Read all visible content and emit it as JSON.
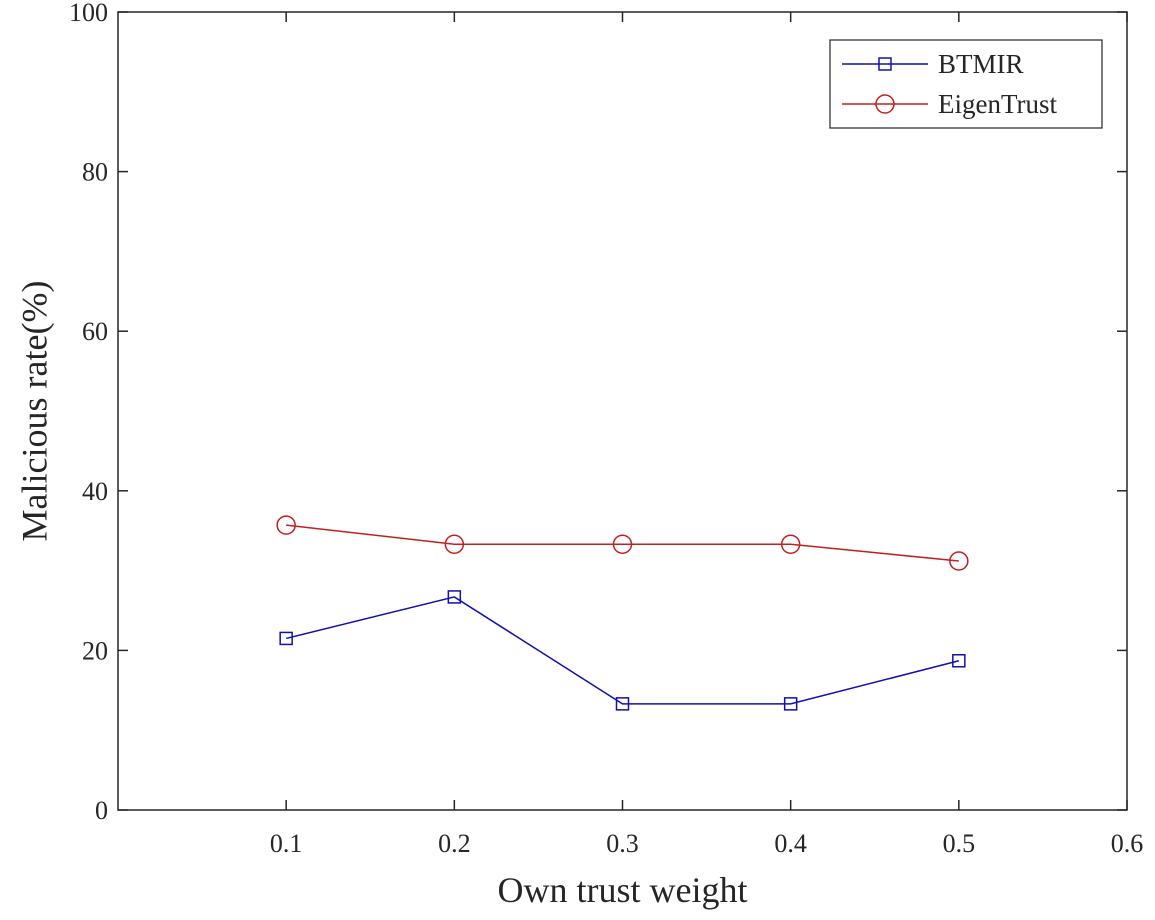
{
  "chart_data": {
    "type": "line",
    "title": "",
    "xlabel": "Own trust weight",
    "ylabel": "Malicious rate(%)",
    "xlim": [
      0,
      0.6
    ],
    "ylim": [
      0,
      100
    ],
    "x_ticks": [
      0.1,
      0.2,
      0.3,
      0.4,
      0.5,
      0.6
    ],
    "x_tick_labels": [
      "0.1",
      "0.2",
      "0.3",
      "0.4",
      "0.5",
      "0.6"
    ],
    "y_ticks": [
      0,
      20,
      40,
      60,
      80,
      100
    ],
    "y_tick_labels": [
      "0",
      "20",
      "40",
      "60",
      "80",
      "100"
    ],
    "grid": false,
    "legend_position": "top-right",
    "x": [
      0.1,
      0.2,
      0.3,
      0.4,
      0.5
    ],
    "series": [
      {
        "name": "BTMIR",
        "marker": "square",
        "color": "#1010b0",
        "values": [
          21.5,
          26.7,
          13.3,
          13.3,
          18.7
        ]
      },
      {
        "name": "EigenTrust",
        "marker": "circle",
        "color": "#c02020",
        "values": [
          35.7,
          33.3,
          33.3,
          33.3,
          31.2
        ]
      }
    ]
  }
}
